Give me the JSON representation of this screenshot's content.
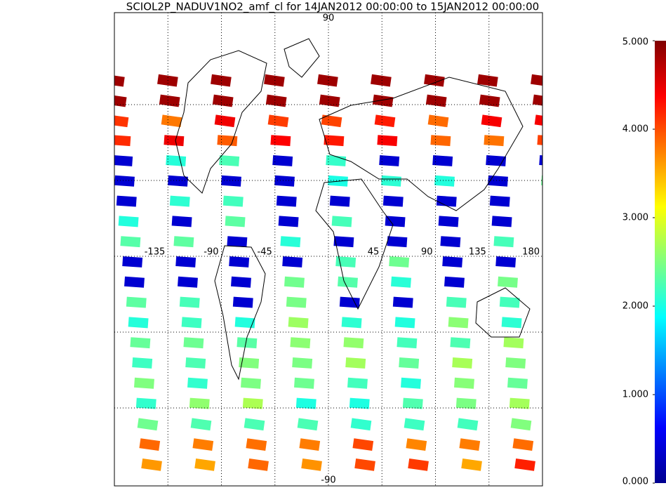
{
  "title": "SCIOL2P_NADUV1NO2_amf_cl for 14JAN2012 00:00:00 to 15JAN2012 00:00:00",
  "map": {
    "lat_labels": [
      {
        "value": 90,
        "label": "90"
      },
      {
        "value": -90,
        "label": "-90"
      }
    ],
    "lon_labels": [
      {
        "value": -135,
        "label": "-135"
      },
      {
        "value": -90,
        "label": "-90"
      },
      {
        "value": -45,
        "label": "-45"
      },
      {
        "value": 45,
        "label": "45"
      },
      {
        "value": 90,
        "label": "90"
      },
      {
        "value": 135,
        "label": "135"
      },
      {
        "value": 180,
        "label": "180"
      }
    ]
  },
  "colorbar": {
    "lim": [
      0,
      5
    ],
    "ticks": [
      {
        "value": 0,
        "label": "0.000"
      },
      {
        "value": 1,
        "label": "1.000"
      },
      {
        "value": 2,
        "label": "2.000"
      },
      {
        "value": 3,
        "label": "3.000"
      },
      {
        "value": 4,
        "label": "4.000"
      },
      {
        "value": 5,
        "label": "5.000"
      }
    ]
  }
}
